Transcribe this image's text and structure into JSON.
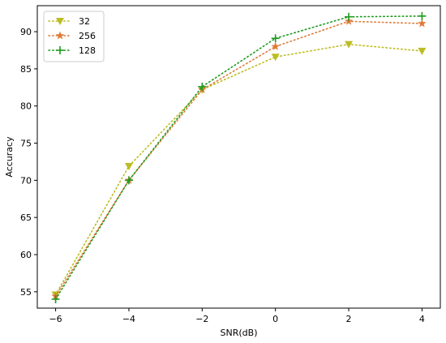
{
  "chart_data": {
    "type": "line",
    "title": "",
    "xlabel": "SNR(dB)",
    "ylabel": "Accuracy",
    "x": [
      -6,
      -4,
      -2,
      0,
      2,
      4
    ],
    "xlim": [
      -6.5,
      4.5
    ],
    "ylim": [
      52.8,
      93.5
    ],
    "xticks": [
      -6,
      -4,
      -2,
      0,
      2,
      4
    ],
    "yticks": [
      55,
      60,
      65,
      70,
      75,
      80,
      85,
      90
    ],
    "grid": false,
    "legend_position": "top-left",
    "series": [
      {
        "name": "32",
        "color": "#bcbd22",
        "marker": "triangle-down",
        "values": [
          54.6,
          71.9,
          82.2,
          86.6,
          88.3,
          87.4
        ]
      },
      {
        "name": "256",
        "color": "#e07b39",
        "marker": "star",
        "values": [
          54.4,
          70.0,
          82.2,
          88.0,
          91.4,
          91.1
        ]
      },
      {
        "name": "128",
        "color": "#1e9a1e",
        "marker": "plus",
        "values": [
          54.0,
          70.0,
          82.6,
          89.1,
          92.0,
          92.1
        ]
      }
    ]
  }
}
